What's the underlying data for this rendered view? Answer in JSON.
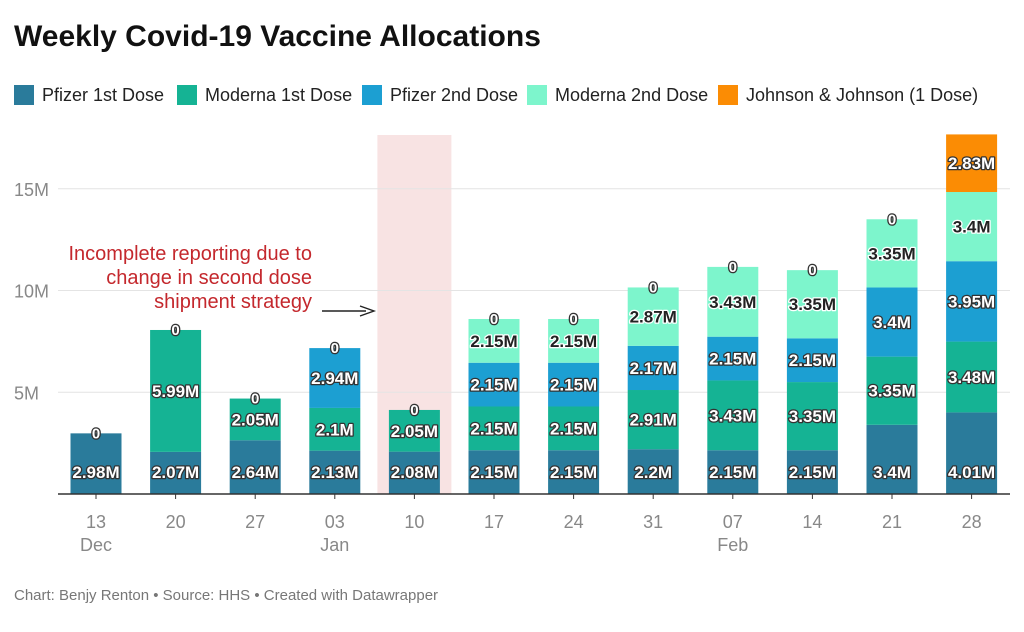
{
  "chart_data": {
    "type": "bar",
    "stacked": true,
    "title": "Weekly Covid-19 Vaccine Allocations",
    "footer": "Chart: Benjy Renton • Source: HHS • Created with Datawrapper",
    "x_ticks": [
      {
        "day": "13",
        "month": "Dec"
      },
      {
        "day": "20",
        "month": ""
      },
      {
        "day": "27",
        "month": ""
      },
      {
        "day": "03",
        "month": "Jan"
      },
      {
        "day": "10",
        "month": ""
      },
      {
        "day": "17",
        "month": ""
      },
      {
        "day": "24",
        "month": ""
      },
      {
        "day": "31",
        "month": ""
      },
      {
        "day": "07",
        "month": "Feb"
      },
      {
        "day": "14",
        "month": ""
      },
      {
        "day": "21",
        "month": ""
      },
      {
        "day": "28",
        "month": ""
      }
    ],
    "y_ticks": [
      "5M",
      "10M",
      "15M"
    ],
    "ylim": [
      0,
      17.7
    ],
    "grid": true,
    "legend_position": "top",
    "series": [
      {
        "name": "Pfizer 1st Dose",
        "color": "#2a7b9b",
        "values": [
          2.98,
          2.07,
          2.64,
          2.13,
          2.08,
          2.15,
          2.15,
          2.2,
          2.15,
          2.15,
          3.4,
          4.01
        ],
        "labels": [
          "2.98M",
          "2.07M",
          "2.64M",
          "2.13M",
          "2.08M",
          "2.15M",
          "2.15M",
          "2.2M",
          "2.15M",
          "2.15M",
          "3.4M",
          "4.01M"
        ]
      },
      {
        "name": "Moderna 1st Dose",
        "color": "#15b394",
        "values": [
          0,
          5.99,
          2.05,
          2.1,
          2.05,
          2.15,
          2.15,
          2.91,
          3.43,
          3.35,
          3.35,
          3.48
        ],
        "labels": [
          "",
          "5.99M",
          "2.05M",
          "2.1M",
          "2.05M",
          "2.15M",
          "2.15M",
          "2.91M",
          "3.43M",
          "3.35M",
          "3.35M",
          "3.48M"
        ]
      },
      {
        "name": "Pfizer 2nd Dose",
        "color": "#1c9fd2",
        "values": [
          0,
          0,
          0,
          2.94,
          0,
          2.15,
          2.15,
          2.17,
          2.15,
          2.15,
          3.4,
          3.95
        ],
        "labels": [
          "",
          "",
          "",
          "2.94M",
          "",
          "2.15M",
          "2.15M",
          "2.17M",
          "2.15M",
          "2.15M",
          "3.4M",
          "3.95M"
        ]
      },
      {
        "name": "Moderna 2nd Dose",
        "color": "#7df5cc",
        "values": [
          0,
          0,
          0,
          0,
          0,
          2.15,
          2.15,
          2.87,
          3.43,
          3.35,
          3.35,
          3.4
        ],
        "labels": [
          "",
          "",
          "",
          "",
          "",
          "2.15M",
          "2.15M",
          "2.87M",
          "3.43M",
          "3.35M",
          "3.35M",
          "3.4M"
        ]
      },
      {
        "name": "Johnson & Johnson (1 Dose)",
        "color": "#fb8c04",
        "values": [
          0,
          0,
          0,
          0,
          0,
          0,
          0,
          0,
          0,
          0,
          0,
          2.83
        ],
        "labels": [
          "",
          "",
          "",
          "",
          "",
          "",
          "",
          "",
          "",
          "",
          "",
          "2.83M"
        ]
      }
    ],
    "top_labels": [
      "0",
      "0",
      "0",
      "0",
      "0",
      "0",
      "0",
      "0",
      "0",
      "0",
      "0",
      ""
    ],
    "annotation": {
      "lines": [
        "Incomplete reporting due to",
        "change in second dose",
        "shipment strategy"
      ],
      "highlight_category_index": 4,
      "color": "#c4282d",
      "highlight_color": "#f8e3e3"
    }
  }
}
